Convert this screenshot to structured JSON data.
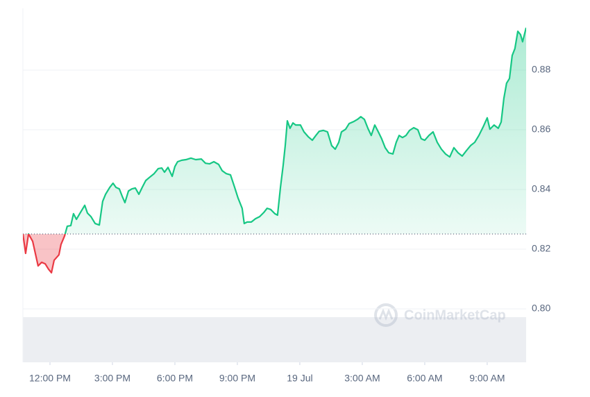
{
  "chart_data": {
    "type": "line",
    "watermark": "CoinMarketCap",
    "x": [
      10.7,
      10.83,
      10.97,
      11.17,
      11.43,
      11.6,
      11.77,
      11.93,
      12.07,
      12.2,
      12.43,
      12.53,
      12.7,
      12.83,
      13,
      13.13,
      13.27,
      13.43,
      13.67,
      13.8,
      13.97,
      14.17,
      14.37,
      14.53,
      14.67,
      14.87,
      15.03,
      15.17,
      15.33,
      15.47,
      15.6,
      15.77,
      15.93,
      16.1,
      16.27,
      16.43,
      16.6,
      16.77,
      17,
      17.2,
      17.37,
      17.5,
      17.67,
      17.87,
      18,
      18.13,
      18.33,
      18.53,
      18.77,
      19,
      19.27,
      19.47,
      19.67,
      19.87,
      20.1,
      20.27,
      20.47,
      20.67,
      20.87,
      21.03,
      21.23,
      21.33,
      21.47,
      21.67,
      21.87,
      22.07,
      22.27,
      22.43,
      22.6,
      22.8,
      22.93,
      23.07,
      23.2,
      23.3,
      23.4,
      23.53,
      23.67,
      23.8,
      24.03,
      24.2,
      24.4,
      24.6,
      24.77,
      24.93,
      25.13,
      25.33,
      25.53,
      25.7,
      25.87,
      26,
      26.2,
      26.37,
      26.6,
      26.77,
      26.93,
      27.1,
      27.27,
      27.43,
      27.6,
      27.77,
      27.93,
      28.1,
      28.27,
      28.47,
      28.63,
      28.77,
      28.93,
      29.1,
      29.27,
      29.47,
      29.67,
      29.83,
      30,
      30.2,
      30.4,
      30.6,
      30.8,
      31,
      31.2,
      31.4,
      31.6,
      31.8,
      32,
      32.2,
      32.4,
      32.6,
      32.8,
      33,
      33.13,
      33.33,
      33.53,
      33.67,
      33.8,
      33.93,
      34.07,
      34.2,
      34.33,
      34.47,
      34.6,
      34.7,
      34.87
    ],
    "values": [
      0.8251,
      0.8186,
      0.8251,
      0.8226,
      0.8144,
      0.8156,
      0.8151,
      0.8133,
      0.8121,
      0.8163,
      0.8181,
      0.8216,
      0.8244,
      0.8277,
      0.8279,
      0.8319,
      0.83,
      0.8319,
      0.8347,
      0.8321,
      0.8309,
      0.8286,
      0.8281,
      0.836,
      0.8384,
      0.8407,
      0.8421,
      0.8407,
      0.8402,
      0.8377,
      0.8356,
      0.8395,
      0.8402,
      0.8405,
      0.8384,
      0.8407,
      0.843,
      0.844,
      0.8453,
      0.847,
      0.8472,
      0.8458,
      0.8474,
      0.8444,
      0.8477,
      0.8493,
      0.8498,
      0.85,
      0.8505,
      0.85,
      0.8502,
      0.8488,
      0.8486,
      0.8493,
      0.8484,
      0.8463,
      0.8453,
      0.8449,
      0.8407,
      0.8372,
      0.8337,
      0.8286,
      0.8291,
      0.8291,
      0.8302,
      0.8309,
      0.8323,
      0.8337,
      0.8333,
      0.8319,
      0.8314,
      0.8407,
      0.8481,
      0.8547,
      0.863,
      0.8605,
      0.8623,
      0.8616,
      0.8616,
      0.8593,
      0.8577,
      0.8565,
      0.8581,
      0.8595,
      0.8598,
      0.8593,
      0.8547,
      0.8535,
      0.8558,
      0.8593,
      0.8602,
      0.8621,
      0.8628,
      0.8635,
      0.8644,
      0.8635,
      0.8605,
      0.8581,
      0.8616,
      0.8593,
      0.857,
      0.854,
      0.8523,
      0.8519,
      0.8558,
      0.8581,
      0.8574,
      0.8581,
      0.8598,
      0.8607,
      0.86,
      0.857,
      0.8565,
      0.8581,
      0.8593,
      0.8558,
      0.8535,
      0.8519,
      0.8509,
      0.854,
      0.8523,
      0.8512,
      0.853,
      0.8547,
      0.8558,
      0.8581,
      0.8609,
      0.864,
      0.8602,
      0.8616,
      0.8605,
      0.8626,
      0.8705,
      0.8756,
      0.8772,
      0.8849,
      0.8872,
      0.893,
      0.8919,
      0.8895,
      0.8942
    ],
    "baseline": 0.8251,
    "up_color": "#16c784",
    "down_color": "#ea3943",
    "xlim": [
      10.7,
      34.87
    ],
    "xticks": [
      {
        "value": 12,
        "label": "12:00 PM"
      },
      {
        "value": 15,
        "label": "3:00 PM"
      },
      {
        "value": 18,
        "label": "6:00 PM"
      },
      {
        "value": 21,
        "label": "9:00 PM"
      },
      {
        "value": 24,
        "label": "19 Jul"
      },
      {
        "value": 27,
        "label": "3:00 AM"
      },
      {
        "value": 30,
        "label": "6:00 AM"
      },
      {
        "value": 33,
        "label": "9:00 AM"
      }
    ],
    "ylim": [
      0.7821,
      0.9
    ],
    "yticks": [
      {
        "value": 0.8,
        "label": "0.80"
      },
      {
        "value": 0.82,
        "label": "0.82"
      },
      {
        "value": 0.84,
        "label": "0.84"
      },
      {
        "value": 0.86,
        "label": "0.86"
      },
      {
        "value": 0.88,
        "label": "0.88"
      }
    ],
    "grid": true
  }
}
